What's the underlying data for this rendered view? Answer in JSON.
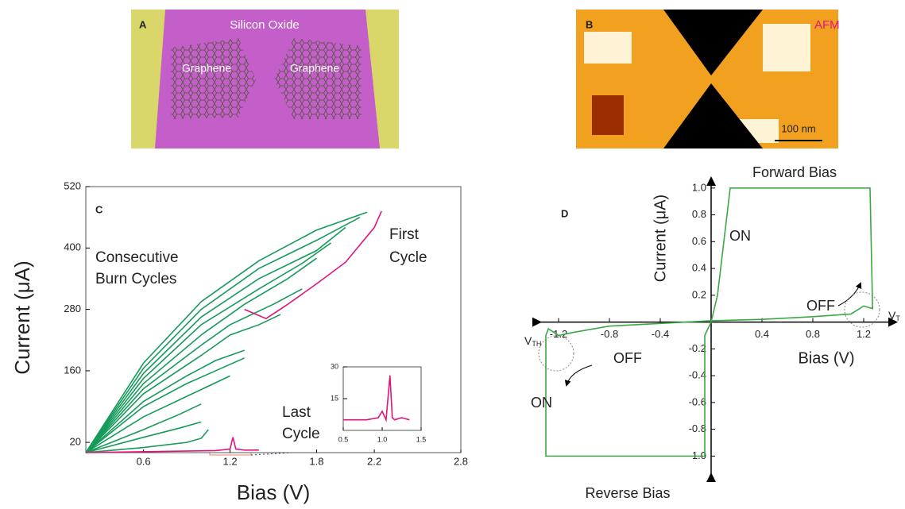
{
  "panel_a": {
    "label": "A",
    "title": "Silicon Oxide",
    "left_label": "Graphene",
    "right_label": "Graphene"
  },
  "panel_b": {
    "label": "B",
    "title": "AFM",
    "scale_bar": "100 nm"
  },
  "chart_data": [
    {
      "type": "line",
      "label": "C",
      "xlabel": "Bias (V)",
      "ylabel": "Current (μA)",
      "xlim": [
        0.2,
        2.8
      ],
      "ylim": [
        0,
        520
      ],
      "xticks": [
        0.6,
        1.2,
        1.8,
        2.2,
        2.8
      ],
      "yticks": [
        20,
        160,
        280,
        400,
        520
      ],
      "annotations": [
        "Consecutive",
        "Burn Cycles",
        "First",
        "Cycle",
        "Last",
        "Cycle"
      ],
      "series": [
        {
          "color": "#169a5a",
          "x": [
            0.2,
            0.6,
            1.0,
            1.4,
            1.8,
            2.15
          ],
          "values": [
            0,
            175,
            295,
            375,
            435,
            470
          ]
        },
        {
          "color": "#169a5a",
          "x": [
            0.2,
            0.6,
            1.0,
            1.4,
            1.8,
            2.1
          ],
          "values": [
            0,
            165,
            280,
            360,
            415,
            460
          ]
        },
        {
          "color": "#169a5a",
          "x": [
            0.2,
            0.6,
            1.0,
            1.4,
            1.8,
            2.0
          ],
          "values": [
            0,
            155,
            265,
            340,
            395,
            440
          ]
        },
        {
          "color": "#169a5a",
          "x": [
            0.2,
            0.6,
            1.0,
            1.4,
            1.7,
            1.9
          ],
          "values": [
            0,
            145,
            250,
            320,
            370,
            410
          ]
        },
        {
          "color": "#169a5a",
          "x": [
            0.2,
            0.6,
            1.0,
            1.3,
            1.6,
            1.8
          ],
          "values": [
            0,
            135,
            230,
            290,
            340,
            380
          ]
        },
        {
          "color": "#169a5a",
          "x": [
            0.2,
            0.6,
            1.0,
            1.2,
            1.5,
            1.7
          ],
          "values": [
            0,
            125,
            210,
            250,
            290,
            320
          ]
        },
        {
          "color": "#169a5a",
          "x": [
            0.2,
            0.6,
            1.0,
            1.2,
            1.4,
            1.55
          ],
          "values": [
            0,
            115,
            190,
            230,
            250,
            270
          ]
        },
        {
          "color": "#169a5a",
          "x": [
            0.2,
            0.6,
            0.9,
            1.1,
            1.3
          ],
          "values": [
            0,
            100,
            150,
            180,
            200
          ]
        },
        {
          "color": "#169a5a",
          "x": [
            0.2,
            0.6,
            0.9,
            1.1,
            1.3
          ],
          "values": [
            0,
            90,
            135,
            160,
            185
          ]
        },
        {
          "color": "#169a5a",
          "x": [
            0.2,
            0.6,
            0.9,
            1.2
          ],
          "values": [
            0,
            70,
            110,
            150
          ]
        },
        {
          "color": "#169a5a",
          "x": [
            0.2,
            0.6,
            0.85,
            1.0
          ],
          "values": [
            0,
            45,
            75,
            95
          ]
        },
        {
          "color": "#169a5a",
          "x": [
            0.2,
            0.6,
            0.85,
            1.0
          ],
          "values": [
            0,
            30,
            48,
            60
          ]
        },
        {
          "color": "#169a5a",
          "x": [
            0.2,
            0.6,
            0.9,
            1.0,
            1.05
          ],
          "values": [
            0,
            10,
            20,
            28,
            45
          ]
        },
        {
          "color": "#e0157a",
          "x": [
            1.3,
            1.45,
            1.6,
            1.8,
            2.0,
            2.2,
            2.25
          ],
          "values": [
            280,
            262,
            290,
            330,
            372,
            440,
            472
          ]
        },
        {
          "color": "#e0157a",
          "x": [
            0.2,
            1.1,
            1.2,
            1.22,
            1.24,
            1.3,
            1.4
          ],
          "values": [
            0,
            4,
            7,
            30,
            7,
            5,
            5
          ]
        }
      ]
    },
    {
      "type": "line",
      "xlim": [
        0.5,
        1.5
      ],
      "ylim": [
        0,
        30
      ],
      "xticks": [
        0.5,
        {
          "value": 1,
          "label": "1.0"
        },
        1.5
      ],
      "yticks": [
        15,
        30
      ],
      "series": [
        {
          "color": "#e0157a",
          "x": [
            0.5,
            0.8,
            0.95,
            1.0,
            1.05,
            1.1,
            1.13,
            1.16,
            1.25,
            1.35
          ],
          "values": [
            5,
            5,
            6,
            9,
            5,
            26,
            6,
            5,
            6,
            5
          ]
        }
      ]
    },
    {
      "type": "line",
      "label": "D",
      "title": "Forward Bias",
      "subtitle": "Reverse Bias",
      "xlabel": "Bias (V)",
      "ylabel": "Current (μA)",
      "xlim": [
        -1.35,
        1.45
      ],
      "ylim": [
        -1.14,
        1.07
      ],
      "xticks": [
        -1.2,
        -0.8,
        -0.4,
        0.4,
        0.8,
        1.2
      ],
      "yticks": [
        {
          "value": -1,
          "label": "-1.0"
        },
        -0.8,
        -0.6,
        -0.4,
        -0.2,
        0.2,
        0.4,
        0.6,
        0.8,
        {
          "value": 1,
          "label": "1.0"
        }
      ],
      "annotations": [
        "ON",
        "OFF",
        "ON",
        "OFF"
      ],
      "threshold_left": "V",
      "threshold_left_sub": "TH",
      "threshold_right": "V",
      "threshold_right_sub": "T",
      "series": [
        {
          "color": "#3aa845",
          "x": [
            0,
            0.05,
            0.15,
            1.25,
            1.27,
            1.2,
            1.1,
            0.8,
            0.4,
            0,
            -0.4,
            -0.8,
            -1.1,
            -1.2,
            -1.28,
            -1.3,
            -1.3,
            -0.05,
            -0.05,
            0
          ],
          "values": [
            0,
            0.2,
            1.0,
            1.0,
            0.1,
            0.12,
            0.06,
            0.04,
            0.02,
            0.01,
            -0.01,
            -0.03,
            -0.08,
            -0.1,
            -0.05,
            -0.1,
            -1.0,
            -1.0,
            -0.1,
            0
          ]
        }
      ]
    }
  ]
}
